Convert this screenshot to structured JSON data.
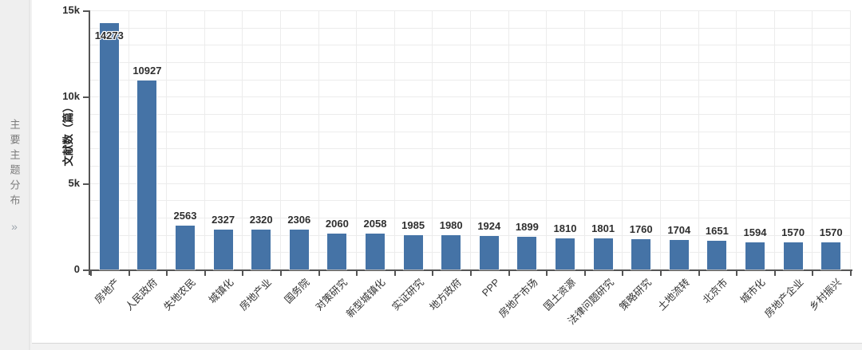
{
  "sidebar": {
    "title": "主要主题分布",
    "expand_icon": "»"
  },
  "chart_data": {
    "type": "bar",
    "title": "主要主题分布",
    "xlabel": "",
    "ylabel": "文献数（篇）",
    "categories": [
      "房地产",
      "人民政府",
      "失地农民",
      "城镇化",
      "房地产业",
      "国务院",
      "对策研究",
      "新型城镇化",
      "实证研究",
      "地方政府",
      "PPP",
      "房地产市场",
      "国土资源",
      "法律问题研究",
      "策略研究",
      "土地流转",
      "北京市",
      "城市化",
      "房地产企业",
      "乡村振兴"
    ],
    "values": [
      14273,
      10927,
      2563,
      2327,
      2320,
      2306,
      2060,
      2058,
      1985,
      1980,
      1924,
      1899,
      1810,
      1801,
      1760,
      1704,
      1651,
      1594,
      1570,
      1570
    ],
    "ylim": [
      0,
      15000
    ],
    "yticks": [
      {
        "value": 0,
        "label": "0"
      },
      {
        "value": 5000,
        "label": "5k"
      },
      {
        "value": 10000,
        "label": "10k"
      },
      {
        "value": 15000,
        "label": "15k"
      }
    ],
    "minor_grid_step": 1000,
    "grid": true,
    "legend_position": "none",
    "bar_label_position": "top"
  },
  "colors": {
    "bar": "#4573a6",
    "axis": "#555555",
    "grid": "#ececec",
    "text": "#2f2f2f",
    "sidebar_text": "#7d7d7d"
  }
}
